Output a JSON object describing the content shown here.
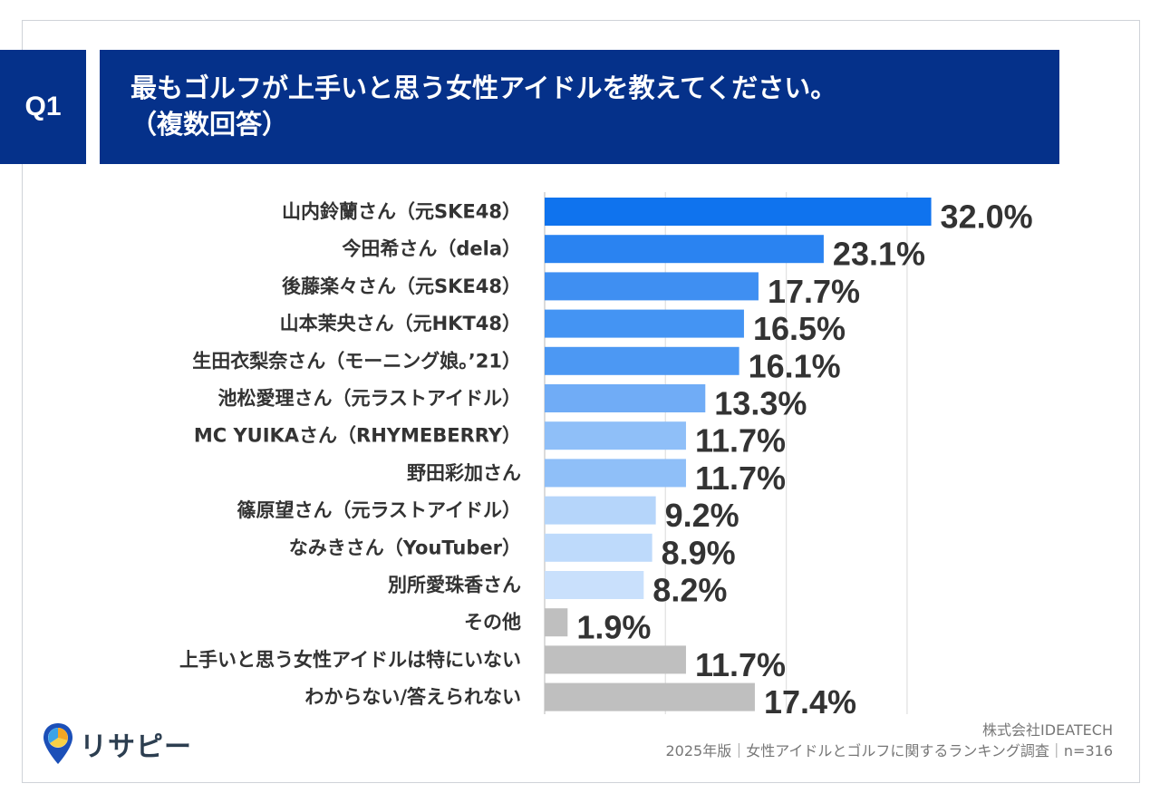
{
  "question": {
    "number": "Q1",
    "title_line1": "最もゴルフが上手いと思う女性アイドルを教えてください。",
    "title_line2": "（複数回答）"
  },
  "chart_data": {
    "type": "bar",
    "orientation": "horizontal",
    "categories": [
      "山内鈴蘭さん（元SKE48）",
      "今田希さん（dela）",
      "後藤楽々さん（元SKE48）",
      "山本茉央さん（元HKT48）",
      "生田衣梨奈さん（モーニング娘。’21）",
      "池松愛理さん（元ラストアイドル）",
      "MC YUIKAさん（RHYMEBERRY）",
      "野田彩加さん",
      "篠原望さん（元ラストアイドル）",
      "なみきさん（YouTuber）",
      "別所愛珠香さん",
      "その他",
      "上手いと思う女性アイドルは特にいない",
      "わからない/答えられない"
    ],
    "values": [
      32.0,
      23.1,
      17.7,
      16.5,
      16.1,
      13.3,
      11.7,
      11.7,
      9.2,
      8.9,
      8.2,
      1.9,
      11.7,
      17.4
    ],
    "value_labels": [
      "32.0%",
      "23.1%",
      "17.7%",
      "16.5%",
      "16.1%",
      "13.3%",
      "11.7%",
      "11.7%",
      "9.2%",
      "8.9%",
      "8.2%",
      "1.9%",
      "11.7%",
      "17.4%"
    ],
    "bar_colors": [
      "#0f73ee",
      "#2a83f1",
      "#3f8ff2",
      "#4494f3",
      "#4c98f3",
      "#70acf6",
      "#8fbff8",
      "#8fbff8",
      "#b5d5fa",
      "#bedafb",
      "#c9e0fc",
      "#bfbfbf",
      "#bfbfbf",
      "#bfbfbf"
    ],
    "xlim": [
      0,
      30
    ],
    "grid": true
  },
  "branding": {
    "logo_text": "リサピー",
    "company": "株式会社IDEATECH",
    "survey_note": "2025年版｜女性アイドルとゴルフに関するランキング調査｜n=316"
  }
}
